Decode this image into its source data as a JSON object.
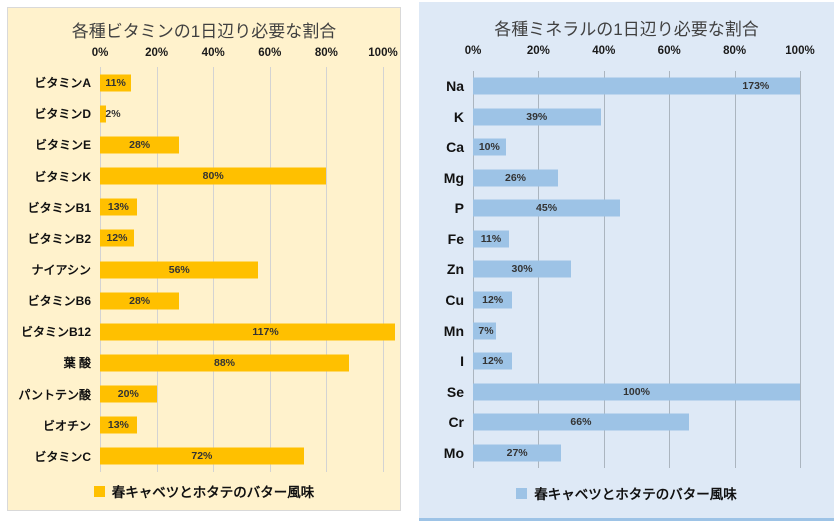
{
  "chart_data": [
    {
      "type": "bar",
      "orientation": "horizontal",
      "title": "各種ビタミンの1日辺り必要な割合",
      "legend": "春キャベツとホタテのバター風味",
      "legend_position": "bottom",
      "categories": [
        "ビタミンA",
        "ビタミンD",
        "ビタミンE",
        "ビタミンK",
        "ビタミンB1",
        "ビタミンB2",
        "ナイアシン",
        "ビタミンB6",
        "ビタミンB12",
        "葉 酸",
        "パントテン酸",
        "ビオチン",
        "ビタミンC"
      ],
      "values": [
        11,
        2,
        28,
        80,
        13,
        12,
        56,
        28,
        117,
        88,
        20,
        13,
        72
      ],
      "value_labels": [
        "11%",
        "2%",
        "28%",
        "80%",
        "13%",
        "12%",
        "56%",
        "28%",
        "117%",
        "88%",
        "20%",
        "13%",
        "72%"
      ],
      "axis_ticks": [
        "0%",
        "20%",
        "40%",
        "60%",
        "80%",
        "100%"
      ],
      "xlim": [
        0,
        100
      ],
      "grid": true,
      "colors": {
        "bar": "#FFC000",
        "panel_bg": "#FFF2CC",
        "grid": "#D3D3D3",
        "title": "#404040"
      }
    },
    {
      "type": "bar",
      "orientation": "horizontal",
      "title": "各種ミネラルの1日辺り必要な割合",
      "legend": "春キャベツとホタテのバター風味",
      "legend_position": "bottom",
      "categories": [
        "Na",
        "K",
        "Ca",
        "Mg",
        "P",
        "Fe",
        "Zn",
        "Cu",
        "Mn",
        "I",
        "Se",
        "Cr",
        "Mo"
      ],
      "values": [
        173,
        39,
        10,
        26,
        45,
        11,
        30,
        12,
        7,
        12,
        100,
        66,
        27
      ],
      "value_labels": [
        "173%",
        "39%",
        "10%",
        "26%",
        "45%",
        "11%",
        "30%",
        "12%",
        "7%",
        "12%",
        "100%",
        "66%",
        "27%"
      ],
      "axis_ticks": [
        "0%",
        "20%",
        "40%",
        "60%",
        "80%",
        "100%"
      ],
      "xlim": [
        0,
        100
      ],
      "grid": true,
      "colors": {
        "bar": "#9DC3E6",
        "panel_bg": "#DEE9F6",
        "grid": "#ABB5BF",
        "title": "#404040"
      }
    }
  ]
}
